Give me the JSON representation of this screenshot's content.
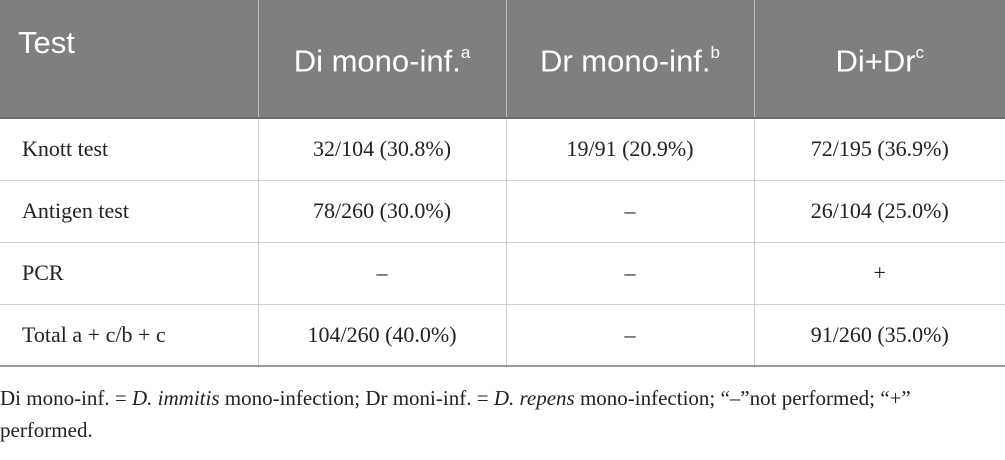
{
  "table": {
    "headers": [
      {
        "text": "Test",
        "sup": ""
      },
      {
        "text": "Di mono-inf.",
        "sup": "a"
      },
      {
        "text": "Dr mono-inf.",
        "sup": "b"
      },
      {
        "text": "Di+Dr",
        "sup": "c"
      }
    ],
    "rows": [
      [
        "Knott test",
        "32/104 (30.8%)",
        "19/91 (20.9%)",
        "72/195 (36.9%)"
      ],
      [
        "Antigen test",
        "78/260 (30.0%)",
        "–",
        "26/104 (25.0%)"
      ],
      [
        "PCR",
        "–",
        "–",
        "+"
      ],
      [
        "Total a + c/b + c",
        "104/260 (40.0%)",
        "–",
        "91/260 (35.0%)"
      ]
    ]
  },
  "footnote": {
    "part1": "Di mono-inf. = ",
    "italic1": "D. immitis",
    "part2": " mono-infection; Dr moni-inf. = ",
    "italic2": "D. repens",
    "part3": " mono-infection; “–”not performed; “+” performed."
  }
}
